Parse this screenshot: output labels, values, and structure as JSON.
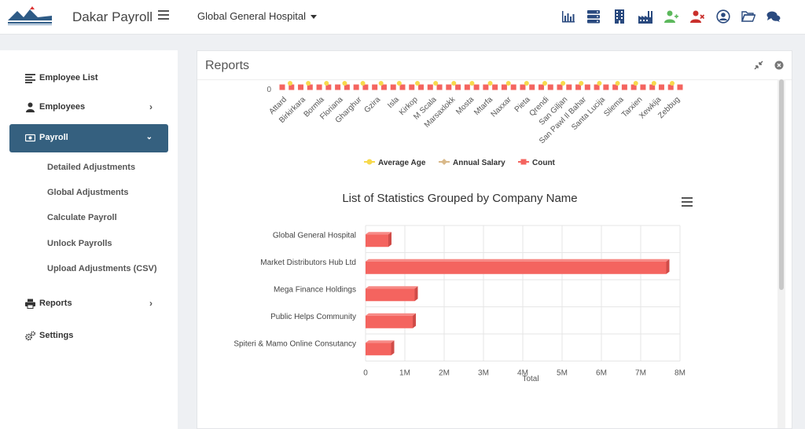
{
  "header": {
    "app_title": "Dakar Payroll",
    "company_selector": "Global General Hospital",
    "icons": [
      "bar-chart-icon",
      "server-icon",
      "building-icon",
      "factory-icon",
      "user-add-icon",
      "user-remove-icon",
      "user-circle-icon",
      "folder-open-icon",
      "comments-icon"
    ]
  },
  "sidebar": {
    "items": [
      {
        "label": "Employee List",
        "icon": "list-icon"
      },
      {
        "label": "Employees",
        "icon": "user-icon"
      },
      {
        "label": "Payroll",
        "icon": "money-icon"
      },
      {
        "label": "Reports",
        "icon": "print-icon"
      },
      {
        "label": "Settings",
        "icon": "cogs-icon"
      }
    ],
    "payroll_sub": [
      "Detailed Adjustments",
      "Global Adjustments",
      "Calculate Payroll",
      "Unlock Payrolls",
      "Upload Adjustments (CSV)"
    ]
  },
  "card": {
    "title": "Reports"
  },
  "colors": {
    "accent": "#35607f",
    "avg_age": "#f7d94c",
    "salary": "#d9b98a",
    "count": "#f4645f"
  },
  "chart_data": [
    {
      "type": "line",
      "categories": [
        "Attard",
        "Birkirkara",
        "Bormla",
        "Floriana",
        "Gharghur",
        "Gzira",
        "Isla",
        "Kirkop",
        "M Scala",
        "Marsaxlokk",
        "Mosta",
        "Mtarfa",
        "Naxxar",
        "Pieta",
        "Qrendi",
        "San Giljan",
        "San Pawl Il Bahar",
        "Santa Lucija",
        "Sliema",
        "Tarxien",
        "Xewkija",
        "Zebbug"
      ],
      "y_tick": "0",
      "series": [
        {
          "name": "Average Age"
        },
        {
          "name": "Annual Salary"
        },
        {
          "name": "Count"
        }
      ]
    },
    {
      "type": "bar",
      "title": "List of Statistics Grouped by Company Name",
      "categories": [
        "Global General Hospital",
        "Market Distributors Hub Ltd",
        "Mega Finance Holdings",
        "Public Helps Community",
        "Spiteri & Mamo Online Consutancy"
      ],
      "values": [
        580000,
        7650000,
        1250000,
        1200000,
        650000
      ],
      "xlabel": "Total",
      "xlim": [
        0,
        8000000
      ],
      "x_ticks": [
        "0",
        "1M",
        "2M",
        "3M",
        "4M",
        "5M",
        "6M",
        "7M",
        "8M"
      ],
      "color": "#f4645f"
    }
  ]
}
